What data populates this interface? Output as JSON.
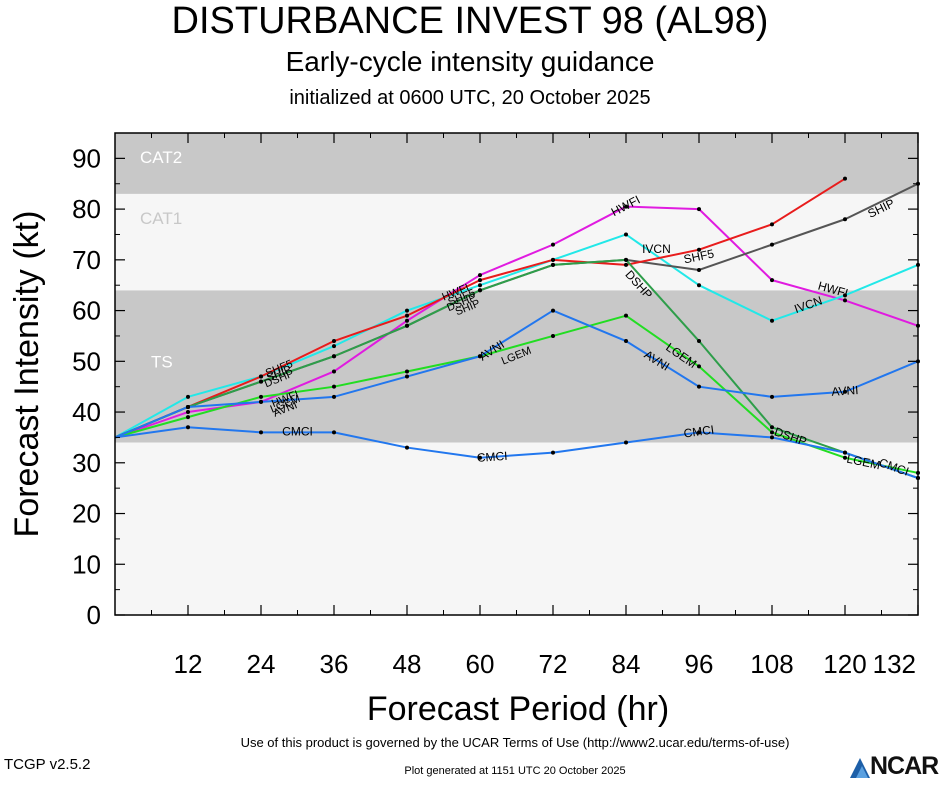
{
  "header": {
    "title": "DISTURBANCE INVEST 98 (AL98)",
    "subtitle": "Early-cycle intensity guidance",
    "initialized": "initialized at 0600 UTC, 20 October 2025"
  },
  "footer": {
    "terms": "Use of this product is governed by the UCAR Terms of Use (http://www2.ucar.edu/terms-of-use)",
    "version": "TCGP v2.5.2",
    "generated": "Plot generated at 1151 UTC   20 October 2025",
    "logo_text": "NCAR"
  },
  "chart_data": {
    "type": "line",
    "xlabel": "Forecast Period (hr)",
    "ylabel": "Forecast Intensity (kt)",
    "xlim": [
      0,
      132
    ],
    "ylim": [
      0,
      95
    ],
    "xticks": [
      12,
      24,
      36,
      48,
      60,
      72,
      84,
      96,
      108,
      120,
      132
    ],
    "yticks": [
      0,
      10,
      20,
      30,
      40,
      50,
      60,
      70,
      80,
      90
    ],
    "grid": false,
    "bands": [
      {
        "label": "TS",
        "from": 34,
        "to": 64,
        "color": "#c8c8c8"
      },
      {
        "label": "CAT1",
        "from": 64,
        "to": 83,
        "color": "#f6f6f6"
      },
      {
        "label": "CAT2",
        "from": 83,
        "to": 96,
        "color": "#c8c8c8"
      }
    ],
    "below_band_color": "#f6f6f6",
    "series": [
      {
        "name": "HWFI",
        "color": "#e01be0",
        "points": [
          [
            0,
            35
          ],
          [
            12,
            40
          ],
          [
            24,
            42
          ],
          [
            36,
            48
          ],
          [
            48,
            58
          ],
          [
            60,
            67
          ],
          [
            72,
            73
          ],
          [
            84,
            80.5
          ],
          [
            96,
            80
          ],
          [
            108,
            66
          ],
          [
            120,
            62
          ],
          [
            132,
            57
          ]
        ],
        "labels": [
          [
            84,
            80.5
          ],
          [
            118,
            64
          ]
        ]
      },
      {
        "name": "IVCN",
        "color": "#22e8e8",
        "points": [
          [
            0,
            35
          ],
          [
            12,
            43
          ],
          [
            24,
            47
          ],
          [
            36,
            53
          ],
          [
            48,
            60
          ],
          [
            60,
            65
          ],
          [
            72,
            70
          ],
          [
            84,
            75
          ],
          [
            96,
            65
          ],
          [
            108,
            58
          ],
          [
            120,
            63
          ],
          [
            132,
            69
          ]
        ],
        "labels": [
          [
            114,
            61
          ]
        ]
      },
      {
        "name": "IVCN",
        "color": "#22e8e8",
        "points": [],
        "labels": [
          [
            89,
            72
          ]
        ]
      },
      {
        "name": "SHIP",
        "color": "#555555",
        "points": [
          [
            0,
            35
          ],
          [
            12,
            41
          ],
          [
            24,
            46
          ],
          [
            36,
            51
          ],
          [
            48,
            57
          ],
          [
            60,
            64
          ],
          [
            72,
            69
          ],
          [
            84,
            70
          ],
          [
            96,
            68
          ],
          [
            108,
            73
          ],
          [
            120,
            78
          ],
          [
            132,
            85
          ]
        ],
        "labels": [
          [
            126,
            80
          ]
        ]
      },
      {
        "name": "SHF5",
        "color": "#e81c1c",
        "points": [
          [
            0,
            35
          ],
          [
            12,
            41
          ],
          [
            24,
            47
          ],
          [
            36,
            54
          ],
          [
            48,
            59
          ],
          [
            60,
            66
          ],
          [
            72,
            70
          ],
          [
            84,
            69
          ],
          [
            96,
            72
          ],
          [
            108,
            77
          ],
          [
            120,
            86
          ]
        ],
        "labels": [
          [
            96,
            70.5
          ]
        ]
      },
      {
        "name": "DSHP",
        "color": "#2e9e4a",
        "points": [
          [
            0,
            35
          ],
          [
            12,
            41
          ],
          [
            24,
            46
          ],
          [
            36,
            51
          ],
          [
            48,
            57
          ],
          [
            60,
            64
          ],
          [
            72,
            69
          ],
          [
            84,
            70
          ],
          [
            96,
            54
          ],
          [
            108,
            37
          ],
          [
            120,
            32
          ],
          [
            132,
            27
          ]
        ],
        "labels": [
          [
            86,
            65
          ],
          [
            111,
            35
          ]
        ]
      },
      {
        "name": "LGEM",
        "color": "#22dd22",
        "points": [
          [
            0,
            35
          ],
          [
            12,
            39
          ],
          [
            24,
            43
          ],
          [
            36,
            45
          ],
          [
            48,
            48
          ],
          [
            60,
            51
          ],
          [
            72,
            55
          ],
          [
            84,
            59
          ],
          [
            96,
            49
          ],
          [
            108,
            36
          ],
          [
            120,
            31
          ],
          [
            132,
            28
          ]
        ],
        "labels": [
          [
            93,
            51
          ],
          [
            123,
            30
          ]
        ]
      },
      {
        "name": "AVNI",
        "color": "#2277ee",
        "points": [
          [
            0,
            35
          ],
          [
            12,
            41
          ],
          [
            24,
            42
          ],
          [
            36,
            43
          ],
          [
            48,
            47
          ],
          [
            60,
            51
          ],
          [
            72,
            60
          ],
          [
            84,
            54
          ],
          [
            96,
            45
          ],
          [
            108,
            43
          ],
          [
            120,
            44
          ],
          [
            132,
            50
          ]
        ],
        "labels": [
          [
            62,
            52
          ],
          [
            89,
            50
          ],
          [
            120,
            44
          ]
        ]
      },
      {
        "name": "CMCI",
        "color": "#2277ee",
        "points": [
          [
            0,
            35
          ],
          [
            12,
            37
          ],
          [
            24,
            36
          ],
          [
            36,
            36
          ],
          [
            48,
            33
          ],
          [
            60,
            31
          ],
          [
            72,
            32
          ],
          [
            84,
            34
          ],
          [
            96,
            36
          ],
          [
            108,
            35
          ],
          [
            120,
            32
          ],
          [
            132,
            27
          ]
        ],
        "labels": [
          [
            30,
            36
          ],
          [
            62,
            31
          ],
          [
            96,
            36
          ],
          [
            128,
            29
          ]
        ]
      }
    ],
    "early_labels": [
      {
        "text": "DSHP",
        "x": 27,
        "y": 46.5
      },
      {
        "text": "SHIP",
        "x": 27,
        "y": 47.5
      },
      {
        "text": "SHF5",
        "x": 27,
        "y": 48.5
      },
      {
        "text": "HWFI",
        "x": 28,
        "y": 42.5
      },
      {
        "text": "LGEM",
        "x": 28,
        "y": 41.5
      },
      {
        "text": "AVNI",
        "x": 28,
        "y": 40.5
      },
      {
        "text": "HWFI",
        "x": 56,
        "y": 63.5
      },
      {
        "text": "SHF5",
        "x": 57,
        "y": 62.5
      },
      {
        "text": "DSHP",
        "x": 57,
        "y": 61.5
      },
      {
        "text": "SHIP",
        "x": 58,
        "y": 60.5
      },
      {
        "text": "LGEM",
        "x": 66,
        "y": 51
      }
    ]
  }
}
